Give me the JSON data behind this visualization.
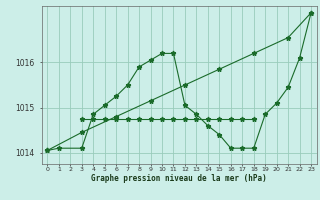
{
  "xlabel": "Graphe pression niveau de la mer (hPa)",
  "background_color": "#cceee8",
  "grid_color": "#99ccbb",
  "line_color": "#1a6b2a",
  "ylim": [
    1013.75,
    1017.25
  ],
  "xlim": [
    -0.5,
    23.5
  ],
  "yticks": [
    1014,
    1015,
    1016
  ],
  "xticks": [
    0,
    1,
    2,
    3,
    4,
    5,
    6,
    7,
    8,
    9,
    10,
    11,
    12,
    13,
    14,
    15,
    16,
    17,
    18,
    19,
    20,
    21,
    22,
    23
  ],
  "series1_x": [
    0,
    1,
    3,
    4,
    5,
    6,
    7,
    8,
    9,
    10,
    11,
    12,
    13,
    14,
    15,
    16,
    17,
    18,
    19,
    20,
    21,
    22,
    23
  ],
  "series1_y": [
    1014.05,
    1014.1,
    1014.1,
    1014.85,
    1015.05,
    1015.25,
    1015.5,
    1015.9,
    1016.05,
    1016.2,
    1016.2,
    1015.05,
    1014.85,
    1014.6,
    1014.4,
    1014.1,
    1014.1,
    1014.1,
    1014.85,
    1015.1,
    1015.45,
    1016.1,
    1017.1
  ],
  "series2_x": [
    3,
    4,
    5,
    6,
    7,
    8,
    9,
    10,
    11,
    12,
    13,
    14,
    15,
    16,
    17,
    18
  ],
  "series2_y": [
    1014.75,
    1014.75,
    1014.75,
    1014.75,
    1014.75,
    1014.75,
    1014.75,
    1014.75,
    1014.75,
    1014.75,
    1014.75,
    1014.75,
    1014.75,
    1014.75,
    1014.75,
    1014.75
  ],
  "series3_x": [
    0,
    3,
    6,
    9,
    12,
    15,
    18,
    21,
    23
  ],
  "series3_y": [
    1014.05,
    1014.45,
    1014.8,
    1015.15,
    1015.5,
    1015.85,
    1016.2,
    1016.55,
    1017.1
  ]
}
